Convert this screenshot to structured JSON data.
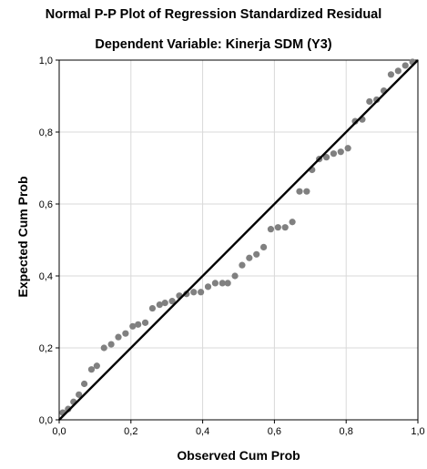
{
  "chart_data": {
    "type": "scatter",
    "title": "Normal P-P Plot of Regression Standardized Residual",
    "subtitle": "Dependent Variable: Kinerja SDM (Y3)",
    "xlabel": "Observed Cum Prob",
    "ylabel": "Expected Cum Prob",
    "xlim": [
      0,
      1
    ],
    "ylim": [
      0,
      1
    ],
    "x_ticks": [
      "0,0",
      "0,2",
      "0,4",
      "0,6",
      "0,8",
      "1,0"
    ],
    "y_ticks": [
      "0,0",
      "0,2",
      "0,4",
      "0,6",
      "0,8",
      "1,0"
    ],
    "grid": true,
    "reference_line": [
      [
        0,
        0
      ],
      [
        1,
        1
      ]
    ],
    "colors": {
      "points": "#808080",
      "line": "#000000",
      "grid": "#d9d9d9",
      "frame": "#000000"
    },
    "points": [
      [
        0.01,
        0.02
      ],
      [
        0.025,
        0.03
      ],
      [
        0.04,
        0.05
      ],
      [
        0.055,
        0.07
      ],
      [
        0.07,
        0.1
      ],
      [
        0.09,
        0.14
      ],
      [
        0.105,
        0.15
      ],
      [
        0.125,
        0.2
      ],
      [
        0.145,
        0.21
      ],
      [
        0.165,
        0.23
      ],
      [
        0.185,
        0.24
      ],
      [
        0.205,
        0.26
      ],
      [
        0.22,
        0.265
      ],
      [
        0.24,
        0.27
      ],
      [
        0.26,
        0.31
      ],
      [
        0.28,
        0.32
      ],
      [
        0.295,
        0.325
      ],
      [
        0.315,
        0.33
      ],
      [
        0.335,
        0.345
      ],
      [
        0.355,
        0.35
      ],
      [
        0.375,
        0.355
      ],
      [
        0.395,
        0.355
      ],
      [
        0.415,
        0.37
      ],
      [
        0.435,
        0.38
      ],
      [
        0.455,
        0.38
      ],
      [
        0.47,
        0.38
      ],
      [
        0.49,
        0.4
      ],
      [
        0.51,
        0.43
      ],
      [
        0.53,
        0.45
      ],
      [
        0.55,
        0.46
      ],
      [
        0.57,
        0.48
      ],
      [
        0.59,
        0.53
      ],
      [
        0.61,
        0.535
      ],
      [
        0.63,
        0.535
      ],
      [
        0.65,
        0.55
      ],
      [
        0.67,
        0.635
      ],
      [
        0.69,
        0.635
      ],
      [
        0.705,
        0.695
      ],
      [
        0.725,
        0.725
      ],
      [
        0.745,
        0.73
      ],
      [
        0.765,
        0.74
      ],
      [
        0.785,
        0.745
      ],
      [
        0.805,
        0.755
      ],
      [
        0.825,
        0.83
      ],
      [
        0.845,
        0.835
      ],
      [
        0.865,
        0.885
      ],
      [
        0.885,
        0.89
      ],
      [
        0.905,
        0.915
      ],
      [
        0.925,
        0.96
      ],
      [
        0.945,
        0.97
      ],
      [
        0.965,
        0.985
      ],
      [
        0.985,
        0.995
      ]
    ]
  }
}
